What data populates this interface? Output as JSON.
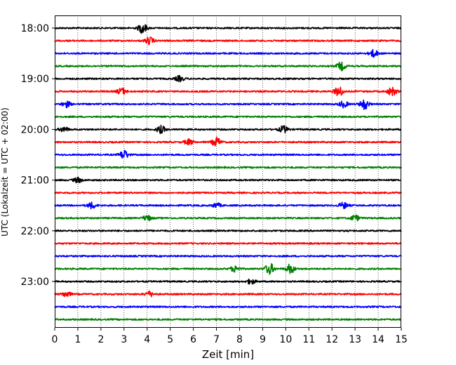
{
  "chart_data": {
    "type": "line",
    "title": "",
    "xlabel": "Zeit  [min]",
    "ylabel": "UTC (Lokalzeit = UTC + 02:00)",
    "xlim": [
      0,
      15
    ],
    "x_ticks": [
      "0",
      "1",
      "2",
      "3",
      "4",
      "5",
      "6",
      "7",
      "8",
      "9",
      "10",
      "11",
      "12",
      "13",
      "14",
      "15"
    ],
    "y_tick_labels": [
      "18:00",
      "19:00",
      "20:00",
      "21:00",
      "22:00",
      "23:00"
    ],
    "grid": "vertical dotted lines at each minute",
    "trace_interval_minutes": 15,
    "trace_colors_cycle": [
      "#000000",
      "#ff0000",
      "#0000ff",
      "#008000"
    ],
    "traces": [
      {
        "start": "18:00",
        "color": "#000000",
        "events": [
          [
            3.8,
            2.2
          ]
        ]
      },
      {
        "start": "18:15",
        "color": "#ff0000",
        "events": [
          [
            4.1,
            1.6
          ]
        ]
      },
      {
        "start": "18:30",
        "color": "#0000ff",
        "events": [
          [
            13.8,
            1.6
          ]
        ]
      },
      {
        "start": "18:45",
        "color": "#008000",
        "events": [
          [
            12.4,
            1.8
          ]
        ]
      },
      {
        "start": "19:00",
        "color": "#000000",
        "events": [
          [
            5.4,
            1.2
          ]
        ]
      },
      {
        "start": "19:15",
        "color": "#ff0000",
        "events": [
          [
            2.9,
            1.5
          ],
          [
            12.3,
            2.2
          ],
          [
            14.6,
            1.8
          ]
        ]
      },
      {
        "start": "19:30",
        "color": "#0000ff",
        "events": [
          [
            0.5,
            1.3
          ],
          [
            12.5,
            1.4
          ],
          [
            13.4,
            2.3
          ]
        ]
      },
      {
        "start": "19:45",
        "color": "#008000",
        "events": []
      },
      {
        "start": "20:00",
        "color": "#000000",
        "events": [
          [
            0.4,
            1.1
          ],
          [
            4.6,
            1.6
          ],
          [
            9.9,
            1.5
          ]
        ]
      },
      {
        "start": "20:15",
        "color": "#ff0000",
        "events": [
          [
            5.8,
            1.2
          ],
          [
            7.0,
            2.0
          ]
        ]
      },
      {
        "start": "20:30",
        "color": "#0000ff",
        "events": [
          [
            3.0,
            2.0
          ]
        ]
      },
      {
        "start": "20:45",
        "color": "#008000",
        "events": []
      },
      {
        "start": "21:00",
        "color": "#000000",
        "events": [
          [
            1.0,
            1.1
          ]
        ]
      },
      {
        "start": "21:15",
        "color": "#ff0000",
        "events": []
      },
      {
        "start": "21:30",
        "color": "#0000ff",
        "events": [
          [
            1.6,
            1.3
          ],
          [
            7.0,
            1.0
          ],
          [
            12.5,
            1.3
          ]
        ]
      },
      {
        "start": "21:45",
        "color": "#008000",
        "events": [
          [
            4.0,
            1.2
          ],
          [
            13.0,
            1.3
          ]
        ]
      },
      {
        "start": "22:00",
        "color": "#000000",
        "events": []
      },
      {
        "start": "22:15",
        "color": "#ff0000",
        "events": []
      },
      {
        "start": "22:30",
        "color": "#0000ff",
        "events": []
      },
      {
        "start": "22:45",
        "color": "#008000",
        "events": [
          [
            7.8,
            1.4
          ],
          [
            9.3,
            2.4
          ],
          [
            10.2,
            2.0
          ]
        ]
      },
      {
        "start": "23:00",
        "color": "#000000",
        "events": [
          [
            8.5,
            1.1
          ]
        ]
      },
      {
        "start": "23:15",
        "color": "#ff0000",
        "events": [
          [
            0.5,
            1.2
          ],
          [
            4.1,
            1.1
          ]
        ]
      },
      {
        "start": "23:30",
        "color": "#0000ff",
        "events": []
      },
      {
        "start": "23:45",
        "color": "#008000",
        "events": []
      }
    ]
  }
}
